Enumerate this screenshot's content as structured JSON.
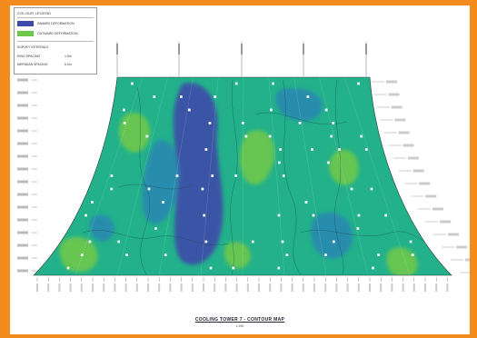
{
  "legend": {
    "title": "COLOUR LEGEND",
    "items": [
      {
        "label": "INWARD DEFORMATION",
        "color": "#3d4aa8"
      },
      {
        "label": "OUTWARD DEFORMATION",
        "color": "#6ec84b"
      }
    ],
    "survey_title": "SURVEY INTERVALS",
    "survey_rows": [
      {
        "label": "RING SPACING",
        "value": "1.5m"
      },
      {
        "label": "MERIDIAN SPACING",
        "value": "5.0m"
      }
    ]
  },
  "map": {
    "title": "COOLING TOWER 7 - CONTOUR MAP",
    "subtitle": "1:250",
    "colors": {
      "base": "#22b18a",
      "inward": "#3d4aa8",
      "inward_mid": "#2a88b0",
      "outward": "#6ec84b",
      "outline": "#2b3b3b"
    }
  }
}
